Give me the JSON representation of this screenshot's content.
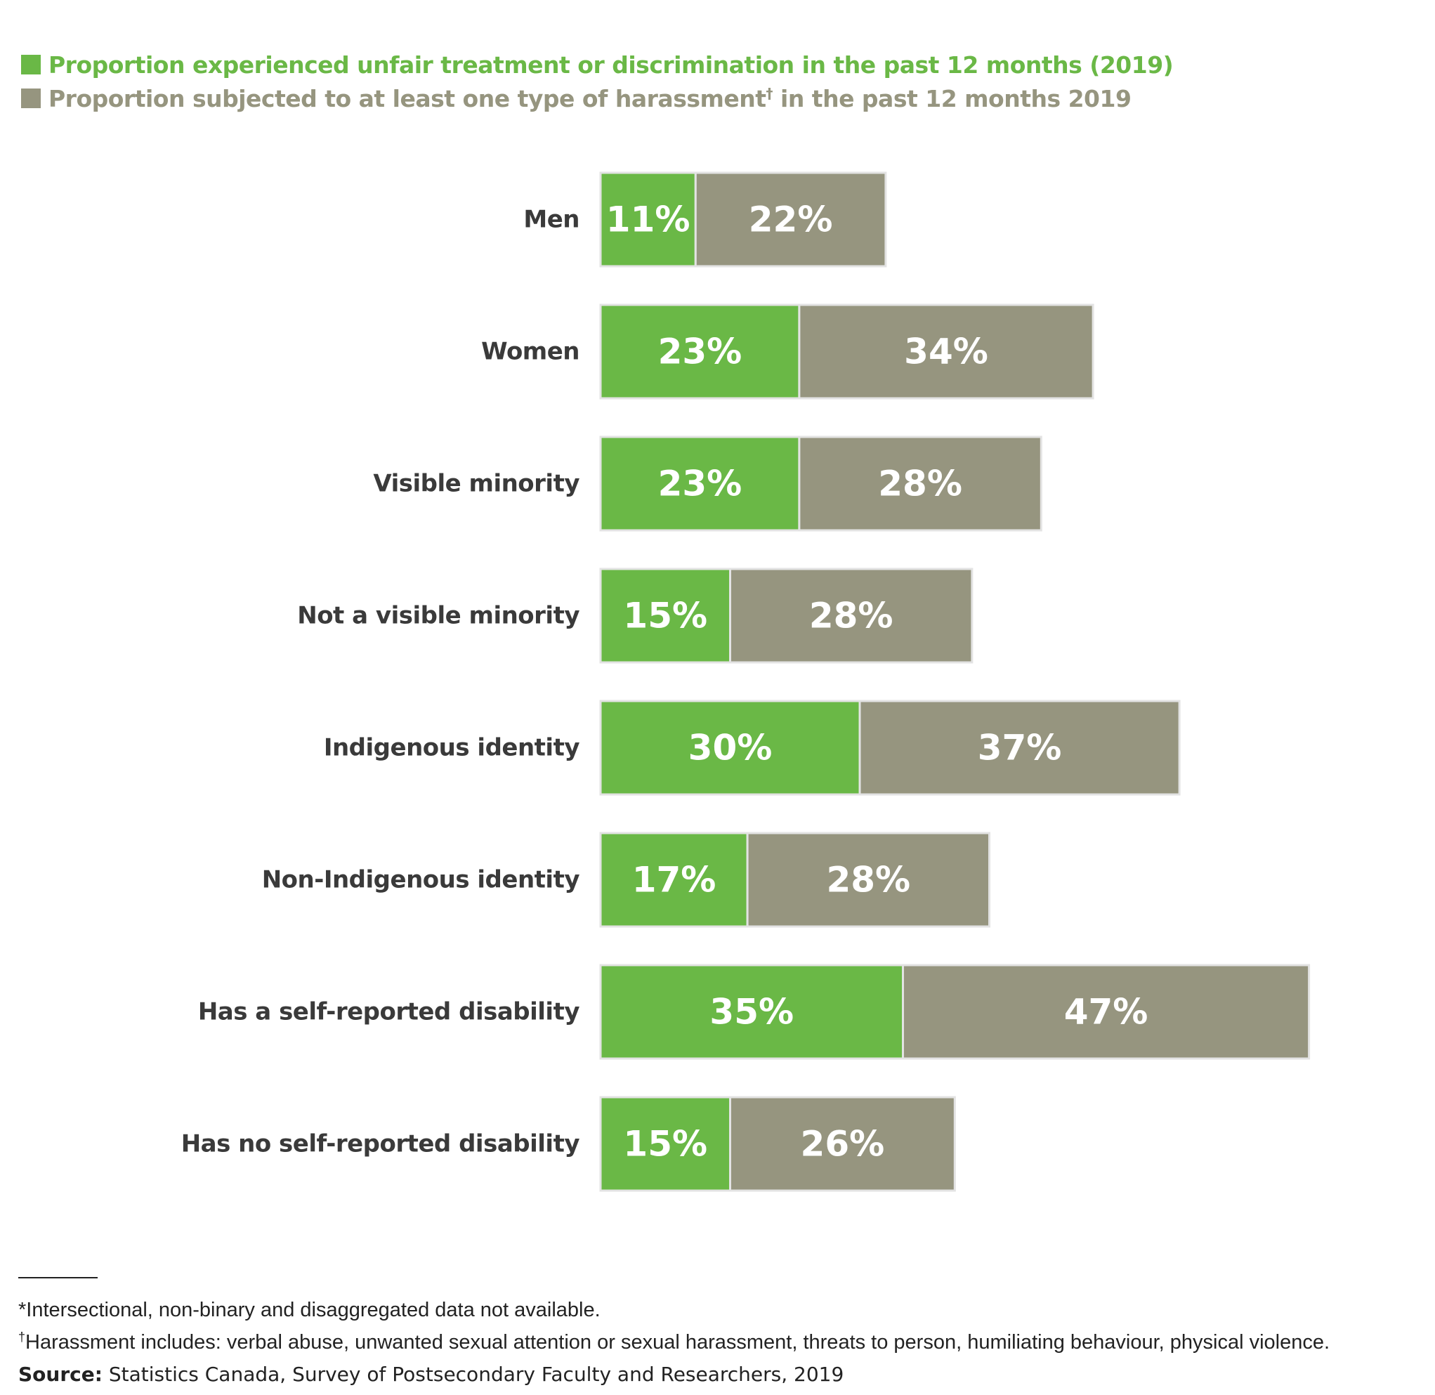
{
  "legend": [
    {
      "label": "Proportion experienced unfair treatment or discrimination in the past 12 months (2019)",
      "color": "#6ab846"
    },
    {
      "label_before": "Proportion subjected to at least one type of harassment",
      "label_mark": "†",
      "label_after": " in the past 12 months 2019",
      "color": "#96957f"
    }
  ],
  "chart_data": {
    "type": "bar",
    "orientation": "horizontal",
    "stacked": true,
    "categories": [
      "Men",
      "Women",
      "Visible minority",
      "Not a visible minority",
      "Indigenous identity",
      "Non-Indigenous identity",
      "Has a self-reported disability",
      "Has no self-reported disability"
    ],
    "series": [
      {
        "name": "Proportion experienced unfair treatment or discrimination in the past 12 months (2019)",
        "color": "#6ab846",
        "values": [
          11,
          23,
          23,
          15,
          30,
          17,
          35,
          15
        ],
        "labels": [
          "11%",
          "23%",
          "23%",
          "15%",
          "30%",
          "17%",
          "35%",
          "15%"
        ]
      },
      {
        "name": "Proportion subjected to at least one type of harassment† in the past 12 months 2019",
        "color": "#96957f",
        "values": [
          22,
          34,
          28,
          28,
          37,
          28,
          47,
          26
        ],
        "labels": [
          "22%",
          "34%",
          "28%",
          "28%",
          "37%",
          "28%",
          "47%",
          "26%"
        ]
      }
    ],
    "grid": false,
    "legend_position": "top-left"
  },
  "footer": {
    "note1": "*Intersectional, non-binary and disaggregated data not available.",
    "note2_mark": "†",
    "note2": "Harassment includes: verbal abuse, unwanted sexual attention or sexual harassment, threats to person, humiliating behaviour, physical violence.",
    "source_label": "Source:",
    "source_text": " Statistics Canada, Survey of Postsecondary Faculty and Researchers, 2019"
  }
}
